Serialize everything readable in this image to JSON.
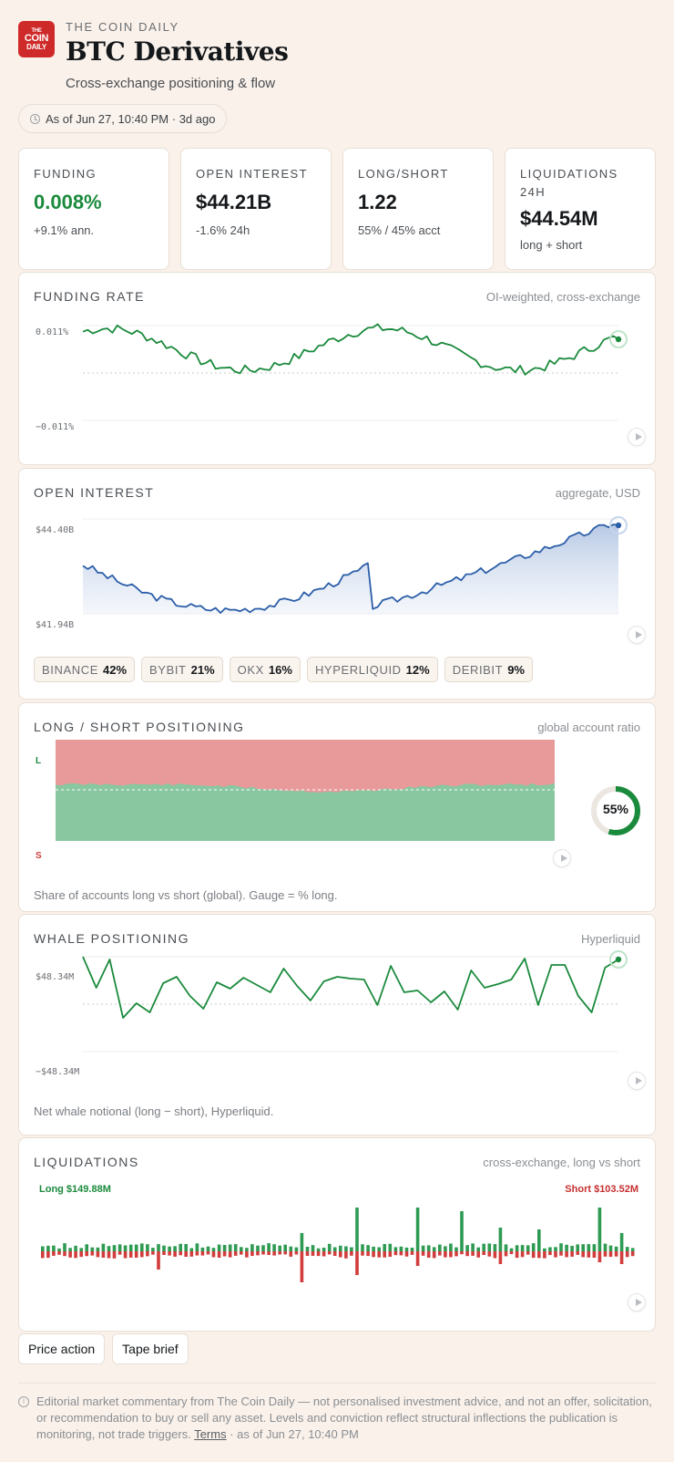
{
  "header": {
    "logo": [
      "THE",
      "COIN",
      "DAILY"
    ],
    "brand": "THE COIN DAILY",
    "title": "BTC Derivatives",
    "subtitle": "Cross-exchange positioning & flow",
    "asof": "As of Jun 27, 10:40 PM · 3d ago"
  },
  "kpis": [
    {
      "label": "FUNDING",
      "value": "0.008%",
      "sub": "+9.1% ann.",
      "accent": "#1a8a3c"
    },
    {
      "label": "OPEN INTEREST",
      "value": "$44.21B",
      "sub": "-1.6% 24h"
    },
    {
      "label": "LONG/SHORT",
      "value": "1.22",
      "sub": "55% / 45% acct"
    },
    {
      "label": "LIQUIDATIONS 24H",
      "value": "$44.54M",
      "sub": "long + short"
    }
  ],
  "funding": {
    "title": "FUNDING RATE",
    "note": "OI-weighted, cross-exchange",
    "ymax_label": "0.011%",
    "ymin_label": "−0.011%",
    "color": "#1a8a3c"
  },
  "oi": {
    "title": "OPEN INTEREST",
    "note": "aggregate, USD",
    "ymax_label": "$44.40B",
    "ymin_label": "$41.94B",
    "color": "#2b5ea8",
    "exchanges": [
      {
        "name": "BINANCE",
        "share": "42%"
      },
      {
        "name": "BYBIT",
        "share": "21%"
      },
      {
        "name": "OKX",
        "share": "16%"
      },
      {
        "name": "HYPERLIQUID",
        "share": "12%"
      },
      {
        "name": "DERIBIT",
        "share": "9%"
      }
    ]
  },
  "longshort": {
    "title": "LONG / SHORT POSITIONING",
    "note": "global account ratio",
    "long_axis": "L",
    "short_axis": "S",
    "gauge_label": "55%",
    "gauge_value": 0.55,
    "caption": "Share of accounts long vs short (global). Gauge = % long.",
    "long_color": "#88c7a0",
    "short_color": "#e89a9a"
  },
  "whale": {
    "title": "WHALE POSITIONING",
    "note": "Hyperliquid",
    "ymax_label": "$48.34M",
    "ymin_label": "−$48.34M",
    "caption": "Net whale notional (long − short), Hyperliquid.",
    "color": "#1a8a3c"
  },
  "liquidations": {
    "title": "LIQUIDATIONS",
    "note": "cross-exchange, long vs short",
    "long_label": "Long $149.88M",
    "short_label": "Short $103.52M",
    "long_color": "#2e9a52",
    "short_color": "#d23c3c"
  },
  "tabs": [
    "Price action",
    "Tape brief"
  ],
  "disclaimer": {
    "text": "Editorial market commentary from The Coin Daily — not personalised investment advice, and not an offer, solicitation, or recommendation to buy or sell any asset. Levels and conviction reflect structural inflections the publication is monitoring, not trade triggers.",
    "link": "Terms",
    "tail": " · as of Jun 27, 10:40 PM"
  }
}
